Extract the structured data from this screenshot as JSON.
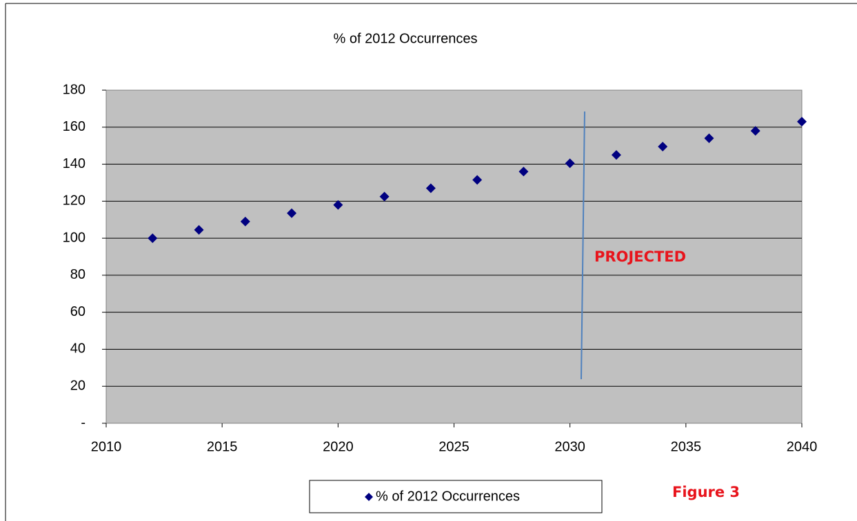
{
  "chart_data": {
    "type": "scatter",
    "title": "% of 2012 Occurrences",
    "x": [
      2012,
      2014,
      2016,
      2018,
      2020,
      2022,
      2024,
      2026,
      2028,
      2030,
      2032,
      2034,
      2036,
      2038,
      2040
    ],
    "series": [
      {
        "name": "% of 2012 Occurrences",
        "color": "#000080",
        "values": [
          100,
          104.5,
          109,
          113.5,
          118,
          122.5,
          127,
          131.5,
          136,
          140.5,
          145,
          149.5,
          154,
          158,
          163
        ]
      }
    ],
    "xlim": [
      2010,
      2040
    ],
    "xticks": [
      2010,
      2015,
      2020,
      2025,
      2030,
      2035,
      2040
    ],
    "ylim": [
      0,
      180
    ],
    "yticks": [
      {
        "value": 0,
        "label": "-"
      },
      20,
      40,
      60,
      80,
      100,
      120,
      140,
      160,
      180
    ],
    "grid": true,
    "legend": "bottom",
    "annotations": [
      "PROJECTED",
      "Figure 3"
    ]
  }
}
